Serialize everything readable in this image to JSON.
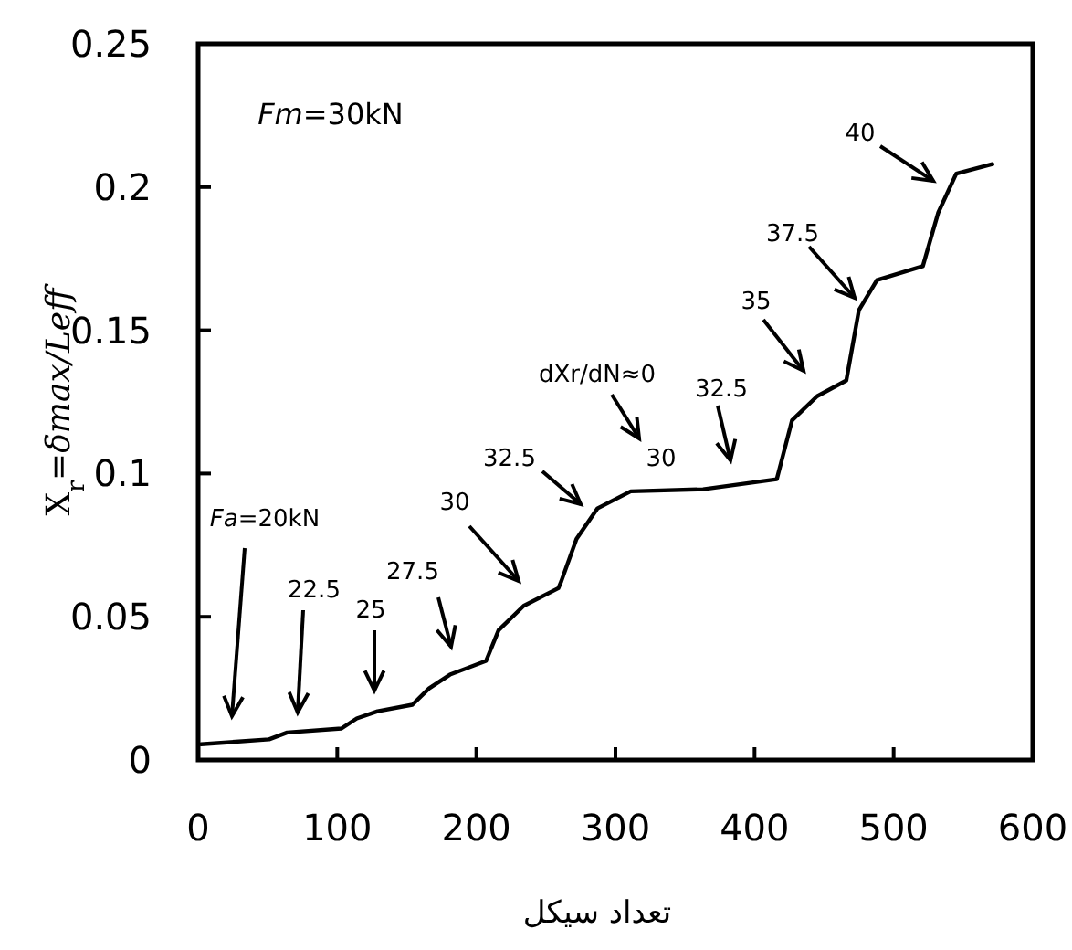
{
  "chart_data": {
    "type": "line",
    "xlabel": "تعداد سیکل",
    "ylabel": "X$_{r}$=*δmax/Leff*",
    "xlim": [
      0,
      600
    ],
    "ylim": [
      0,
      0.25
    ],
    "xticks": [
      0,
      100,
      200,
      300,
      400,
      500,
      600
    ],
    "yticks": [
      0,
      0.05,
      0.1,
      0.15,
      0.2,
      0.25
    ],
    "grid": false,
    "line_style": "solid",
    "series": [
      {
        "color": "#000000",
        "x": [
          2,
          51,
          64,
          103,
          114,
          129,
          154,
          166,
          181,
          207,
          216,
          234,
          259,
          261,
          272,
          287,
          311,
          363,
          416,
          427,
          445,
          466,
          475,
          488,
          521,
          532,
          545,
          571
        ],
        "values": [
          0.0055,
          0.0072,
          0.0096,
          0.011,
          0.0145,
          0.017,
          0.0193,
          0.025,
          0.0298,
          0.0346,
          0.0453,
          0.0538,
          0.06,
          0.0623,
          0.0772,
          0.0878,
          0.0938,
          0.0945,
          0.098,
          0.1186,
          0.127,
          0.1325,
          0.157,
          0.1675,
          0.1724,
          0.191,
          0.2047,
          0.208
        ]
      }
    ],
    "annotations": [
      "*Fm*=30kN",
      "*Fa*=20kN",
      "22.5",
      "25",
      "27.5",
      "30",
      "32.5",
      "dXr/dN≈0",
      "30",
      "32.5",
      "35",
      "37.5",
      "40"
    ]
  }
}
